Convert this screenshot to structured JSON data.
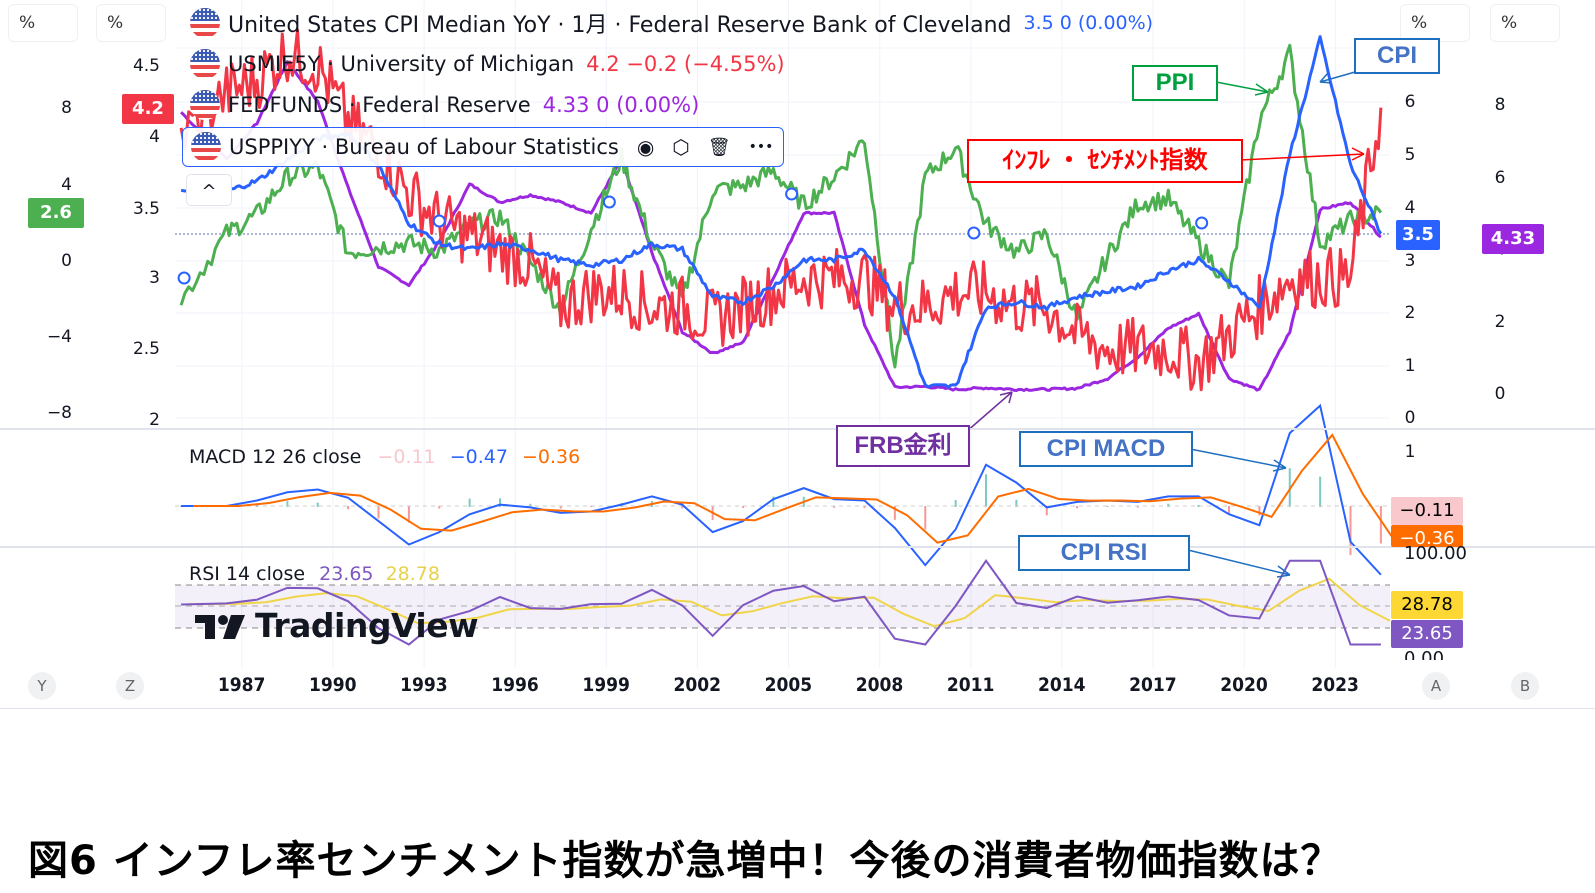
{
  "caption": "図6 インフレ率センチメント指数が急増中！今後の消費者物価指数は？",
  "scales": {
    "left_outer": {
      "unit": "%",
      "ticks": [
        "8",
        "4",
        "0",
        "−4",
        "−8"
      ]
    },
    "left_inner": {
      "unit": "%",
      "ticks": [
        "4.5",
        "4",
        "3.5",
        "3",
        "2.5",
        "2"
      ]
    },
    "right_inner": {
      "unit": "%",
      "ticks": [
        "6",
        "5",
        "4",
        "3",
        "2",
        "1",
        "0"
      ]
    },
    "right_outer": {
      "unit": "%",
      "ticks": [
        "8",
        "6",
        "4",
        "2",
        "0"
      ]
    }
  },
  "badges": {
    "usmie5y": {
      "value": "4.2",
      "color": "#f23645"
    },
    "ppi": {
      "value": "2.6",
      "color": "#4caf50"
    },
    "cpi": {
      "value": "3.5",
      "color": "#2962ff"
    },
    "fedfunds": {
      "value": "4.33",
      "color": "#9c27e0"
    },
    "macd_hist": {
      "value": "−0.11",
      "color": "#f8c8cc"
    },
    "macd_signal": {
      "value": "−0.36",
      "color": "#ff6d00"
    },
    "rsi_ma": {
      "value": "28.78",
      "color": "#fdd835"
    },
    "rsi": {
      "value": "23.65",
      "color": "#7e57c2"
    }
  },
  "legend": [
    {
      "symbol": "United States CPI Median YoY · 1月 · Federal Reserve Bank of Cleveland",
      "values": "3.5  0 (0.00%)",
      "color": "#2962ff"
    },
    {
      "symbol": "USMIE5Y · University of Michigan",
      "values": "4.2  −0.2 (−4.55%)",
      "color": "#f23645"
    },
    {
      "symbol": "FEDFUNDS · Federal Reserve",
      "values": "4.33  0 (0.00%)",
      "color": "#9c27e0"
    },
    {
      "symbol": "USPPIYY · Bureau of Labour Statistics",
      "values": "",
      "color": "#4caf50"
    }
  ],
  "legend_tools": {
    "eye": "◉",
    "settings": "⬡",
    "delete": "🗑",
    "more": "•••",
    "collapse": "^"
  },
  "macd": {
    "label": "MACD 12 26 close",
    "hist": "−0.11",
    "macd": "−0.47",
    "signal": "−0.36",
    "axis_ticks": [
      "1"
    ]
  },
  "rsi": {
    "label": "RSI 14 close",
    "rsi": "23.65",
    "ma": "28.78",
    "axis_top": "100.00",
    "axis_bottom": "0.00"
  },
  "watermark": "TradingView",
  "x_axis": {
    "ticks": [
      "1987",
      "1990",
      "1993",
      "1996",
      "1999",
      "2002",
      "2005",
      "2008",
      "2011",
      "2014",
      "2017",
      "2020",
      "2023"
    ],
    "left_buttons": [
      "Y",
      "Z"
    ],
    "right_buttons": [
      "A",
      "B"
    ]
  },
  "annotations": {
    "ppi": {
      "text": "PPI",
      "color": "#00a040"
    },
    "cpi": {
      "text": "CPI",
      "color": "#1f6fc0"
    },
    "sentiment": {
      "text": "ｲﾝﾌﾚ ・ ｾﾝﾁﾒﾝﾄ指数",
      "color": "#ff0000"
    },
    "frb": {
      "text": "FRB金利",
      "color": "#7030a0"
    },
    "cpi_macd": {
      "text": "CPI MACD",
      "color": "#1f6fc0"
    },
    "cpi_rsi": {
      "text": "CPI RSI",
      "color": "#1f6fc0"
    }
  },
  "chart_data": {
    "type": "line",
    "title": "United States CPI Median YoY / USMIE5Y / FEDFUNDS / USPPIYY",
    "x": [
      1985.5,
      1987,
      1988,
      1989,
      1990,
      1991,
      1992,
      1993,
      1994,
      1995,
      1996,
      1997,
      1998,
      1999,
      2000,
      2001,
      2002,
      2003,
      2004,
      2005,
      2006,
      2007,
      2008,
      2009,
      2010,
      2011,
      2012,
      2013,
      2014,
      2015,
      2016,
      2017,
      2018,
      2019,
      2020,
      2021,
      2022,
      2023,
      2024,
      2025
    ],
    "series": [
      {
        "name": "CPI Median YoY",
        "axis": "right_inner",
        "color": "#2962ff",
        "values": [
          4.3,
          4.3,
          4.5,
          4.9,
          5.3,
          5.4,
          4.8,
          3.7,
          3.3,
          3.2,
          3.3,
          3.2,
          3.0,
          2.9,
          3.0,
          3.3,
          3.2,
          2.3,
          2.2,
          2.5,
          3.0,
          3.0,
          3.2,
          2.3,
          0.6,
          0.6,
          2.1,
          2.2,
          2.1,
          2.3,
          2.4,
          2.5,
          2.8,
          3.0,
          2.6,
          2.1,
          5.0,
          7.2,
          4.8,
          3.5
        ]
      },
      {
        "name": "USMIE5Y",
        "axis": "left_inner",
        "color": "#f23645",
        "values": [
          4.0,
          4.3,
          4.4,
          4.6,
          4.5,
          4.1,
          3.9,
          3.6,
          3.4,
          3.3,
          3.2,
          3.1,
          2.8,
          2.9,
          2.9,
          2.8,
          2.8,
          2.7,
          2.8,
          2.9,
          3.0,
          3.0,
          3.0,
          2.8,
          2.8,
          2.9,
          2.9,
          2.8,
          2.8,
          2.6,
          2.5,
          2.5,
          2.5,
          2.4,
          2.6,
          2.8,
          3.0,
          3.0,
          3.0,
          4.2
        ]
      },
      {
        "name": "FEDFUNDS",
        "axis": "right_outer",
        "color": "#9c27e0",
        "values": [
          7.8,
          6.5,
          7.5,
          9.2,
          8.1,
          5.7,
          3.5,
          3.0,
          4.2,
          5.8,
          5.3,
          5.5,
          5.3,
          5.0,
          6.5,
          3.9,
          1.7,
          1.1,
          1.4,
          3.2,
          5.0,
          5.0,
          1.9,
          0.16,
          0.18,
          0.1,
          0.14,
          0.1,
          0.1,
          0.13,
          0.4,
          1.0,
          1.8,
          2.2,
          0.4,
          0.08,
          1.7,
          5.1,
          5.3,
          4.33
        ]
      },
      {
        "name": "USPPIYY",
        "axis": "left_outer",
        "color": "#4caf50",
        "values": [
          -2.0,
          1.5,
          2.5,
          4.5,
          5.0,
          0.5,
          0.8,
          1.0,
          0.6,
          1.9,
          2.4,
          0.0,
          -2.5,
          1.8,
          5.5,
          1.0,
          -2.0,
          3.8,
          4.0,
          4.8,
          3.0,
          4.5,
          6.5,
          -5.5,
          4.5,
          6.0,
          2.0,
          0.5,
          1.5,
          -3.0,
          0.3,
          3.1,
          3.3,
          1.0,
          -1.2,
          7.5,
          11.0,
          1.0,
          2.2,
          2.6
        ]
      }
    ],
    "xlabel": "",
    "ylabel": "%",
    "grid": true,
    "legend_position": "top-left"
  }
}
